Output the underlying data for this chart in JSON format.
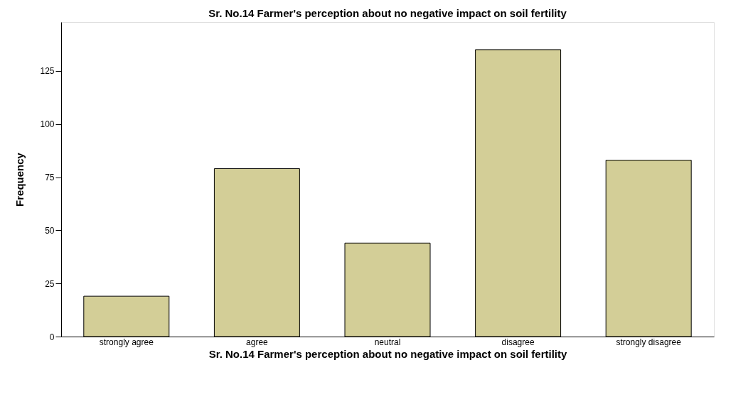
{
  "chart_data": {
    "type": "bar",
    "title": "Sr. No.14 Farmer's perception about no negative impact on soil fertility",
    "xlabel": "Sr. No.14 Farmer's perception about no negative impact on soil fertility",
    "ylabel": "Frequency",
    "categories": [
      "strongly agree",
      "agree",
      "neutral",
      "disagree",
      "strongly disagree"
    ],
    "values": [
      19,
      79,
      44,
      135,
      83
    ],
    "color": "#d3ce97",
    "ylim": [
      0,
      148
    ],
    "yticks": [
      0,
      25,
      50,
      75,
      100,
      125
    ],
    "grid": false
  }
}
